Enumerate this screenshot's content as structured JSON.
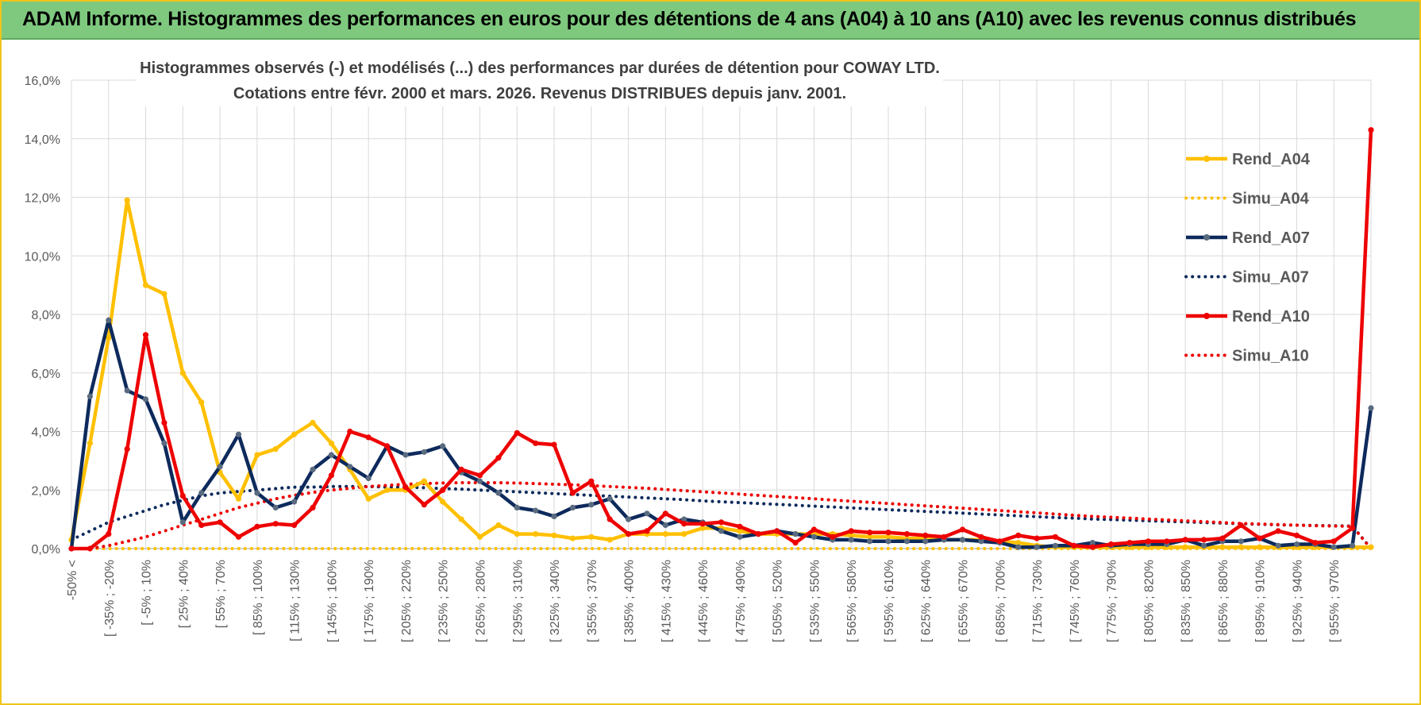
{
  "header": {
    "title": "ADAM Informe. Histogrammes des performances en euros pour des détentions de 4 ans (A04) à 10 ans (A10) avec les revenus connus distribués"
  },
  "colors": {
    "a04": "#FFC000",
    "a07": "#0D2A5C",
    "a07_marker": "#5A6B80",
    "a10": "#EE0000",
    "grid": "#d9d9d9",
    "banner": "#7fc97f"
  },
  "chart_data": {
    "type": "line",
    "title": "Histogrammes observés (-) et modélisés (...) des performances par durées de détention pour COWAY LTD.",
    "subtitle": "Cotations entre févr. 2000 et mars. 2026. Revenus DISTRIBUES depuis janv. 2001.",
    "xlabel": "",
    "ylabel": "",
    "ylim": [
      0,
      16
    ],
    "y_ticks": [
      "0,0%",
      "2,0%",
      "4,0%",
      "6,0%",
      "8,0%",
      "10,0%",
      "12,0%",
      "14,0%",
      "16,0%"
    ],
    "legend_position": "right",
    "x_tick_labels": [
      "-50% <",
      "[ -35% ; -20%",
      "[ -5% ; 10%",
      "[ 25% ; 40%",
      "[ 55% ; 70%",
      "[ 85% ; 100%",
      "[ 115% ; 130%",
      "[ 145% ; 160%",
      "[ 175% ; 190%",
      "[ 205% ; 220%",
      "[ 235% ; 250%",
      "[ 265% ; 280%",
      "[ 295% ; 310%",
      "[ 325% ; 340%",
      "[ 355% ; 370%",
      "[ 385% ; 400%",
      "[ 415% ; 430%",
      "[ 445% ; 460%",
      "[ 475% ; 490%",
      "[ 505% ; 520%",
      "[ 535% ; 550%",
      "[ 565% ; 580%",
      "[ 595% ; 610%",
      "[ 625% ; 640%",
      "[ 655% ; 670%",
      "[ 685% ; 700%",
      "[ 715% ; 730%",
      "[ 745% ; 760%",
      "[ 775% ; 790%",
      "[ 805% ; 820%",
      "[ 835% ; 850%",
      "[ 865% ; 880%",
      "[ 895% ; 910%",
      "[ 925% ; 940%",
      "[ 955% ; 970%"
    ],
    "series": [
      {
        "name": "Rend_A04",
        "style": "solid",
        "color": "#FFC000",
        "values": [
          0.3,
          3.6,
          7.2,
          11.9,
          9.0,
          8.7,
          6.0,
          5.0,
          2.6,
          1.7,
          3.2,
          3.4,
          3.9,
          4.3,
          3.6,
          2.7,
          1.7,
          2.0,
          2.0,
          2.3,
          1.6,
          1.0,
          0.4,
          0.8,
          0.5,
          0.5,
          0.45,
          0.35,
          0.4,
          0.3,
          0.5,
          0.5,
          0.5,
          0.5,
          0.7,
          0.7,
          0.6,
          0.5,
          0.5,
          0.5,
          0.5,
          0.5,
          0.45,
          0.4,
          0.4,
          0.35,
          0.35,
          0.3,
          0.3,
          0.3,
          0.25,
          0.2,
          0.1,
          0.05,
          0.05,
          0.05,
          0.05,
          0.05,
          0.05,
          0.05,
          0.05,
          0.05,
          0.05,
          0.05,
          0.05,
          0.05,
          0.05,
          0.05,
          0.05,
          0.05,
          0.05
        ]
      },
      {
        "name": "Simu_A04",
        "style": "dotted",
        "color": "#FFC000",
        "values": [
          0.0,
          0.0,
          0.0,
          0.0,
          0.0,
          0.0,
          0.0,
          0.0,
          0.0,
          0.0,
          0.0,
          0.0,
          0.0,
          0.0,
          0.0,
          0.0,
          0.0,
          0.0,
          0.0,
          0.0,
          0.0,
          0.0,
          0.0,
          0.0,
          0.0,
          0.0,
          0.0,
          0.0,
          0.0,
          0.0,
          0.0,
          0.0,
          0.0,
          0.0,
          0.0,
          0.0,
          0.0,
          0.0,
          0.0,
          0.0,
          0.0,
          0.0,
          0.0,
          0.0,
          0.0,
          0.0,
          0.0,
          0.0,
          0.0,
          0.0,
          0.0,
          0.0,
          0.0,
          0.0,
          0.0,
          0.0,
          0.0,
          0.0,
          0.0,
          0.0,
          0.0,
          0.0,
          0.0,
          0.0,
          0.0,
          0.0,
          0.0,
          0.0,
          0.0,
          0.0,
          0.0
        ]
      },
      {
        "name": "Rend_A07",
        "style": "solid",
        "color": "#0D2A5C",
        "values": [
          0.0,
          5.2,
          7.8,
          5.4,
          5.1,
          3.6,
          0.9,
          1.9,
          2.8,
          3.9,
          1.9,
          1.4,
          1.6,
          2.7,
          3.2,
          2.8,
          2.4,
          3.5,
          3.2,
          3.3,
          3.5,
          2.6,
          2.3,
          1.9,
          1.4,
          1.3,
          1.1,
          1.4,
          1.5,
          1.7,
          1.0,
          1.2,
          0.8,
          1.0,
          0.9,
          0.6,
          0.4,
          0.5,
          0.6,
          0.5,
          0.4,
          0.3,
          0.3,
          0.25,
          0.25,
          0.25,
          0.25,
          0.3,
          0.3,
          0.25,
          0.2,
          0.05,
          0.05,
          0.1,
          0.1,
          0.2,
          0.1,
          0.15,
          0.15,
          0.15,
          0.3,
          0.1,
          0.25,
          0.25,
          0.35,
          0.1,
          0.15,
          0.15,
          0.05,
          0.1,
          4.8
        ]
      },
      {
        "name": "Simu_A07",
        "style": "dotted",
        "color": "#0D2A5C",
        "values": [
          0.3,
          0.6,
          0.9,
          1.1,
          1.3,
          1.5,
          1.65,
          1.8,
          1.9,
          1.95,
          2.0,
          2.05,
          2.1,
          2.1,
          2.12,
          2.12,
          2.12,
          2.1,
          2.1,
          2.08,
          2.05,
          2.03,
          2.0,
          1.97,
          1.94,
          1.91,
          1.88,
          1.85,
          1.82,
          1.79,
          1.76,
          1.73,
          1.7,
          1.67,
          1.63,
          1.6,
          1.57,
          1.54,
          1.51,
          1.48,
          1.45,
          1.42,
          1.39,
          1.36,
          1.33,
          1.3,
          1.27,
          1.24,
          1.21,
          1.18,
          1.15,
          1.12,
          1.09,
          1.06,
          1.04,
          1.01,
          0.99,
          0.97,
          0.95,
          0.93,
          0.91,
          0.89,
          0.87,
          0.85,
          0.83,
          0.81,
          0.8,
          0.79,
          0.78,
          0.77,
          0.0
        ]
      },
      {
        "name": "Rend_A10",
        "style": "solid",
        "color": "#EE0000",
        "values": [
          0.0,
          0.0,
          0.5,
          3.4,
          7.3,
          4.3,
          1.8,
          0.8,
          0.9,
          0.4,
          0.75,
          0.85,
          0.8,
          1.4,
          2.5,
          4.0,
          3.8,
          3.5,
          2.1,
          1.5,
          2.0,
          2.7,
          2.5,
          3.1,
          3.95,
          3.6,
          3.55,
          1.9,
          2.3,
          1.0,
          0.5,
          0.6,
          1.2,
          0.85,
          0.85,
          0.9,
          0.75,
          0.5,
          0.6,
          0.2,
          0.65,
          0.4,
          0.6,
          0.55,
          0.55,
          0.5,
          0.45,
          0.4,
          0.65,
          0.4,
          0.25,
          0.45,
          0.35,
          0.4,
          0.1,
          0.05,
          0.15,
          0.2,
          0.25,
          0.25,
          0.3,
          0.3,
          0.35,
          0.8,
          0.35,
          0.6,
          0.45,
          0.2,
          0.25,
          0.7,
          14.3
        ]
      },
      {
        "name": "Simu_A10",
        "style": "dotted",
        "color": "#EE0000",
        "values": [
          0.0,
          0.0,
          0.1,
          0.25,
          0.4,
          0.6,
          0.8,
          1.0,
          1.2,
          1.4,
          1.55,
          1.7,
          1.82,
          1.92,
          2.0,
          2.06,
          2.12,
          2.16,
          2.2,
          2.22,
          2.24,
          2.25,
          2.25,
          2.25,
          2.24,
          2.22,
          2.2,
          2.18,
          2.15,
          2.12,
          2.09,
          2.06,
          2.02,
          1.98,
          1.94,
          1.9,
          1.86,
          1.82,
          1.78,
          1.74,
          1.7,
          1.66,
          1.62,
          1.58,
          1.54,
          1.5,
          1.46,
          1.42,
          1.38,
          1.34,
          1.3,
          1.26,
          1.22,
          1.18,
          1.14,
          1.1,
          1.07,
          1.04,
          1.01,
          0.98,
          0.95,
          0.92,
          0.89,
          0.86,
          0.84,
          0.82,
          0.8,
          0.78,
          0.77,
          0.76,
          0.0
        ]
      }
    ]
  }
}
